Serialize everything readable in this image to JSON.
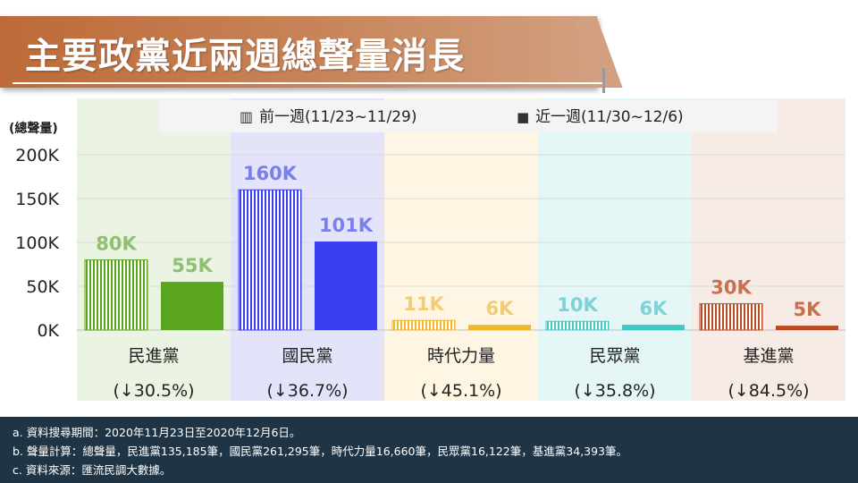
{
  "title": "主要政黨近兩週總聲量消長",
  "footnotes": [
    "a. 資料搜尋期間：2020年11月23日至2020年12月6日。",
    "b. 聲量計算：總聲量，民進黨135,185筆，國民黨261,295筆，時代力量16,660筆，民眾黨16,122筆，基進黨34,393筆。",
    "c. 資料來源：匯流民調大數據。"
  ],
  "chart_data": {
    "type": "bar",
    "ylabel": "(總聲量)",
    "ylim": [
      0,
      200000
    ],
    "yticks": [
      {
        "value": 0,
        "label": "0K"
      },
      {
        "value": 50000,
        "label": "50K"
      },
      {
        "value": 100000,
        "label": "100K"
      },
      {
        "value": 150000,
        "label": "150K"
      },
      {
        "value": 200000,
        "label": "200K"
      }
    ],
    "categories": [
      "民進黨",
      "國民黨",
      "時代力量",
      "民眾黨",
      "基進黨"
    ],
    "changes": [
      "(↓30.5%)",
      "(↓36.7%)",
      "(↓45.1%)",
      "(↓35.8%)",
      "(↓84.5%)"
    ],
    "series": [
      {
        "name": "前一週(11/23~11/29)",
        "legend_marker": "▥",
        "pattern": "vertical-stripes",
        "values": [
          80000,
          160000,
          11000,
          10000,
          30000
        ],
        "labels": [
          "80K",
          "160K",
          "11K",
          "10K",
          "30K"
        ]
      },
      {
        "name": "近一週(11/30~12/6)",
        "legend_marker": "■",
        "pattern": "solid",
        "values": [
          55000,
          101000,
          6000,
          6000,
          5000
        ],
        "labels": [
          "55K",
          "101K",
          "6K",
          "6K",
          "5K"
        ]
      }
    ],
    "party_colors": [
      "#5aa51e",
      "#3a3ef0",
      "#f0b828",
      "#3ec9c9",
      "#b94a22"
    ],
    "label_colors": [
      "#8fbf70",
      "#7b7fea",
      "#f2cc77",
      "#7ed3d6",
      "#c9704e"
    ],
    "panel_colors": [
      "#ebf4e3",
      "#e3e4fa",
      "#fef6e2",
      "#e4f6f6",
      "#f7ebe6"
    ],
    "grid": true
  }
}
